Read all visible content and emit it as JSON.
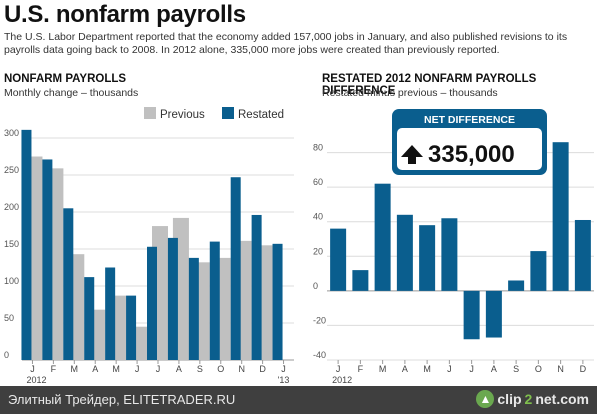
{
  "header": {
    "title": "U.S. nonfarm payrolls",
    "subtitle": "The U.S. Labor Department reported that the economy added 157,000 jobs in January, and also published revisions to its payrolls data going back to 2008.  In 2012 alone, 335,000 more jobs were created than previously reported."
  },
  "colors": {
    "previous": "#c0c0c0",
    "restated": "#0a5e8e",
    "grid": "#dcdcdc",
    "badge_bg": "#0a5e8e"
  },
  "footer": {
    "text": "Элитный Трейдер, ELITETRADER.RU",
    "logo_pre": "clip",
    "logo_two": "2",
    "logo_post": "net.com"
  },
  "chart_data": [
    {
      "type": "bar",
      "title": "NONFARM PAYROLLS",
      "subtitle": "Monthly change – thousands",
      "categories": [
        "J",
        "F",
        "M",
        "A",
        "M",
        "J",
        "J",
        "A",
        "S",
        "O",
        "N",
        "D",
        "J"
      ],
      "year_labels": [
        "2012",
        "'13"
      ],
      "series": [
        {
          "name": "Previous",
          "values": [
            275,
            259,
            143,
            68,
            87,
            45,
            181,
            192,
            132,
            138,
            161,
            155,
            null
          ]
        },
        {
          "name": "Restated",
          "values": [
            311,
            271,
            205,
            112,
            125,
            87,
            153,
            165,
            138,
            160,
            247,
            196,
            157
          ]
        }
      ],
      "ylim": [
        0,
        350
      ],
      "yticks": [
        0,
        50,
        100,
        150,
        200,
        250,
        300
      ],
      "legend": "top-right",
      "grid": true
    },
    {
      "type": "bar",
      "title": "RESTATED 2012 NONFARM PAYROLLS DIFFERENCE",
      "subtitle": "Restated minus previous – thousands",
      "categories": [
        "J",
        "F",
        "M",
        "A",
        "M",
        "J",
        "J",
        "A",
        "S",
        "O",
        "N",
        "D"
      ],
      "year_labels": [
        "2012"
      ],
      "values": [
        36,
        12,
        62,
        44,
        38,
        42,
        -28,
        -27,
        6,
        23,
        86,
        41
      ],
      "ylim": [
        -40,
        100
      ],
      "yticks": [
        -40,
        -20,
        0,
        20,
        40,
        60,
        80
      ],
      "grid": true,
      "badge": {
        "label": "NET DIFFERENCE",
        "value": "335,000"
      }
    }
  ]
}
